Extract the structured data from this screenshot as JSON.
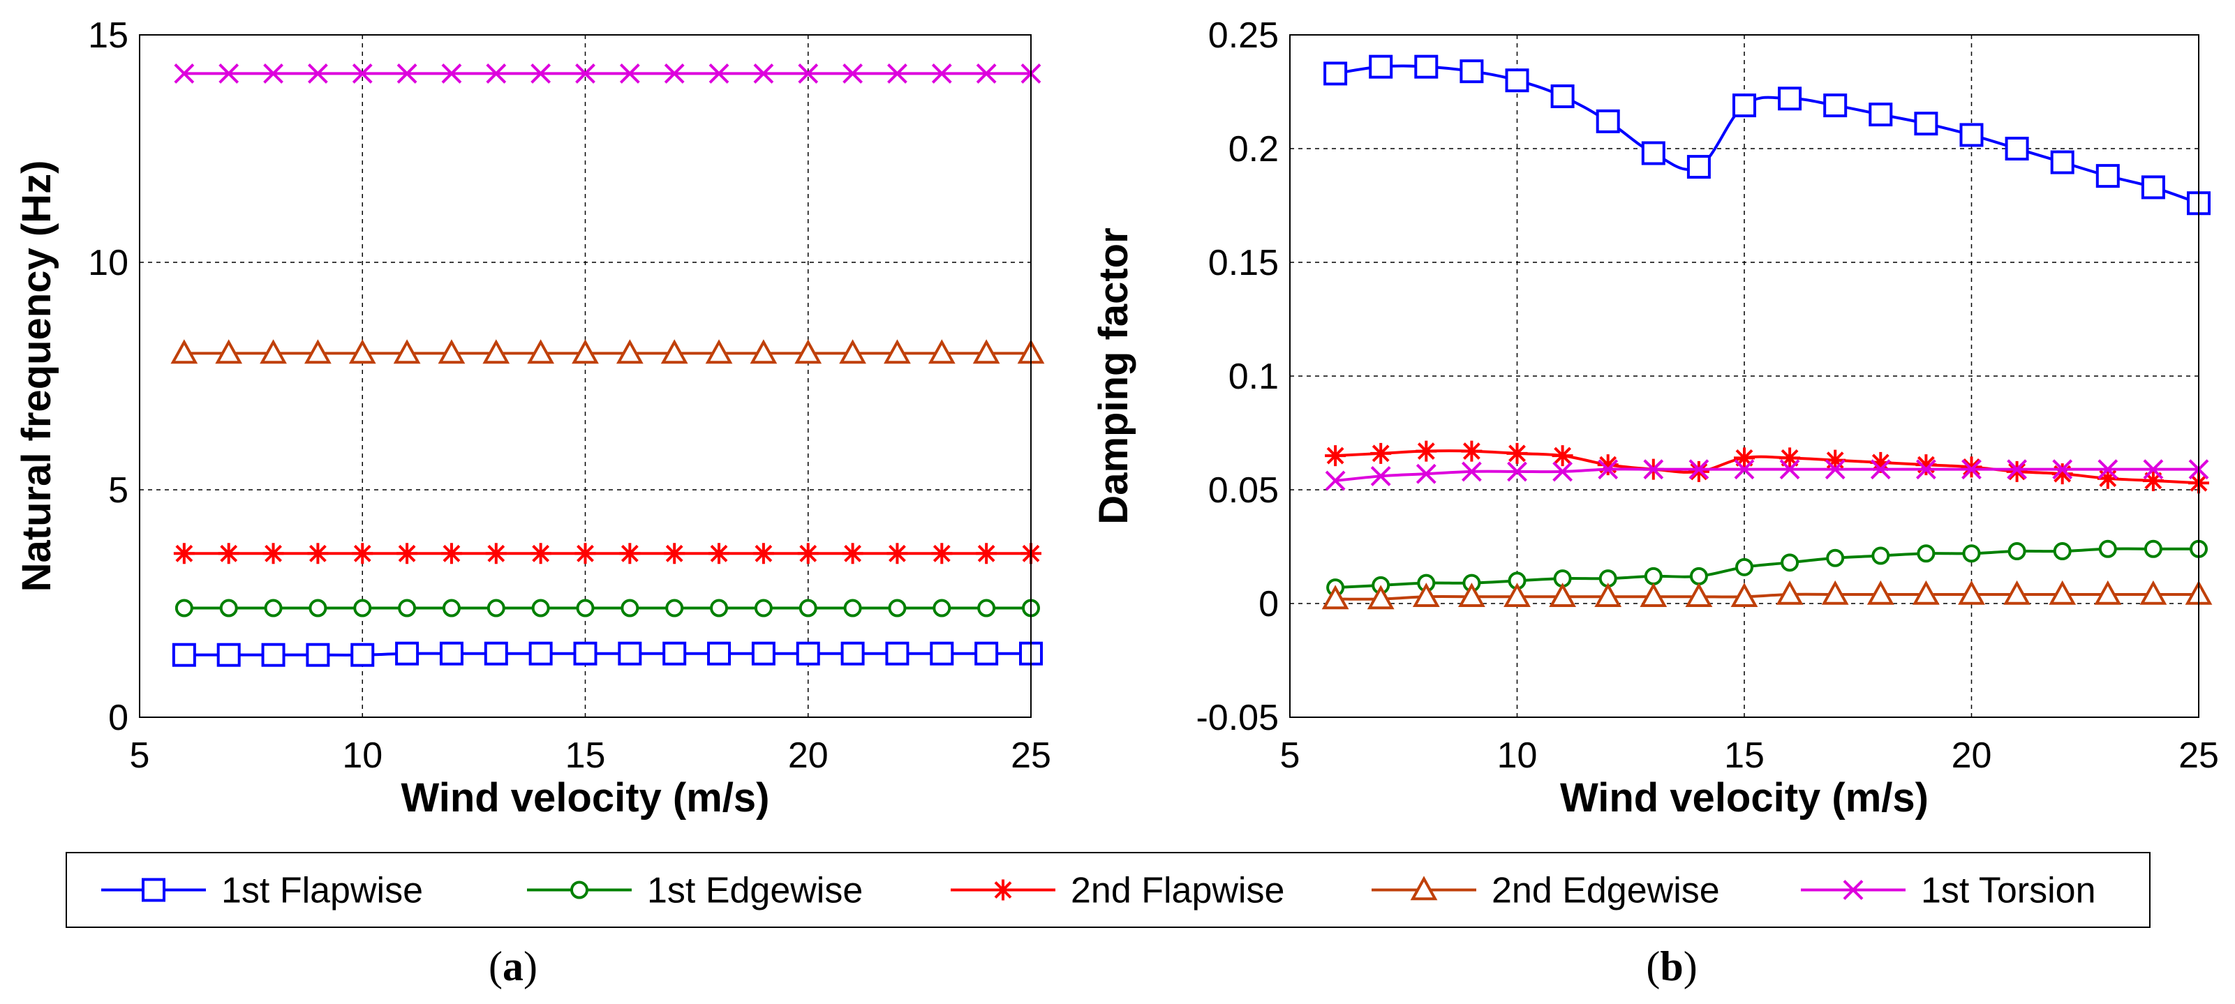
{
  "chart_data": [
    {
      "id": "a",
      "type": "line",
      "caption_letter": "a",
      "caption": "(a)",
      "xlabel": "Wind velocity (m/s)",
      "ylabel": "Natural frequency (Hz)",
      "xlim": [
        5,
        25
      ],
      "ylim": [
        0,
        15
      ],
      "xticks": [
        5,
        10,
        15,
        20,
        25
      ],
      "yticks": [
        0,
        5,
        10,
        15
      ],
      "xtick_labels": [
        "5",
        "10",
        "15",
        "20",
        "25"
      ],
      "ytick_labels": [
        "0",
        "5",
        "10",
        "15"
      ],
      "grid": true,
      "x": [
        6,
        7,
        8,
        9,
        10,
        11,
        12,
        13,
        14,
        15,
        16,
        17,
        18,
        19,
        20,
        21,
        22,
        23,
        24,
        25
      ],
      "series": [
        {
          "name": "1st Flapwise",
          "color": "#0000FF",
          "marker": "square",
          "values": [
            1.37,
            1.37,
            1.37,
            1.37,
            1.37,
            1.4,
            1.4,
            1.4,
            1.4,
            1.4,
            1.4,
            1.4,
            1.4,
            1.4,
            1.4,
            1.4,
            1.4,
            1.4,
            1.4,
            1.4
          ]
        },
        {
          "name": "1st Edgewise",
          "color": "#008000",
          "marker": "circle",
          "values": [
            2.4,
            2.4,
            2.4,
            2.4,
            2.4,
            2.4,
            2.4,
            2.4,
            2.4,
            2.4,
            2.4,
            2.4,
            2.4,
            2.4,
            2.4,
            2.4,
            2.4,
            2.4,
            2.4,
            2.4
          ]
        },
        {
          "name": "2nd Flapwise",
          "color": "#FF0000",
          "marker": "star",
          "values": [
            3.6,
            3.6,
            3.6,
            3.6,
            3.6,
            3.6,
            3.6,
            3.6,
            3.6,
            3.6,
            3.6,
            3.6,
            3.6,
            3.6,
            3.6,
            3.6,
            3.6,
            3.6,
            3.6,
            3.6
          ]
        },
        {
          "name": "2nd Edgewise",
          "color": "#C0400A",
          "marker": "triangle",
          "values": [
            8.0,
            8.0,
            8.0,
            8.0,
            8.0,
            8.0,
            8.0,
            8.0,
            8.0,
            8.0,
            8.0,
            8.0,
            8.0,
            8.0,
            8.0,
            8.0,
            8.0,
            8.0,
            8.0,
            8.0
          ]
        },
        {
          "name": "1st Torsion",
          "color": "#DD00DD",
          "marker": "x",
          "values": [
            14.15,
            14.15,
            14.15,
            14.15,
            14.15,
            14.15,
            14.15,
            14.15,
            14.15,
            14.15,
            14.15,
            14.15,
            14.15,
            14.15,
            14.15,
            14.15,
            14.15,
            14.15,
            14.15,
            14.15
          ]
        }
      ]
    },
    {
      "id": "b",
      "type": "line",
      "caption_letter": "b",
      "caption": "(b)",
      "xlabel": "Wind velocity (m/s)",
      "ylabel": "Damping factor",
      "xlim": [
        5,
        25
      ],
      "ylim": [
        -0.05,
        0.25
      ],
      "xticks": [
        5,
        10,
        15,
        20,
        25
      ],
      "yticks": [
        -0.05,
        0,
        0.05,
        0.1,
        0.15,
        0.2,
        0.25
      ],
      "xtick_labels": [
        "5",
        "10",
        "15",
        "20",
        "25"
      ],
      "ytick_labels": [
        "-0.05",
        "0",
        "0.05",
        "0.1",
        "0.15",
        "0.2",
        "0.25"
      ],
      "grid": true,
      "x": [
        6,
        7,
        8,
        9,
        10,
        11,
        12,
        13,
        14,
        15,
        16,
        17,
        18,
        19,
        20,
        21,
        22,
        23,
        24,
        25
      ],
      "series": [
        {
          "name": "1st Flapwise",
          "color": "#0000FF",
          "marker": "square",
          "values": [
            0.233,
            0.236,
            0.236,
            0.234,
            0.23,
            0.223,
            0.212,
            0.198,
            0.192,
            0.219,
            0.222,
            0.219,
            0.215,
            0.211,
            0.206,
            0.2,
            0.194,
            0.188,
            0.183,
            0.176
          ]
        },
        {
          "name": "1st Edgewise",
          "color": "#008000",
          "marker": "circle",
          "values": [
            0.007,
            0.008,
            0.009,
            0.009,
            0.01,
            0.011,
            0.011,
            0.012,
            0.012,
            0.016,
            0.018,
            0.02,
            0.021,
            0.022,
            0.022,
            0.023,
            0.023,
            0.024,
            0.024,
            0.024
          ]
        },
        {
          "name": "2nd Flapwise",
          "color": "#FF0000",
          "marker": "star",
          "values": [
            0.065,
            0.066,
            0.067,
            0.067,
            0.066,
            0.065,
            0.061,
            0.059,
            0.058,
            0.064,
            0.064,
            0.063,
            0.062,
            0.061,
            0.06,
            0.058,
            0.057,
            0.055,
            0.054,
            0.053
          ]
        },
        {
          "name": "2nd Edgewise",
          "color": "#C0400A",
          "marker": "triangle",
          "values": [
            0.002,
            0.002,
            0.003,
            0.003,
            0.003,
            0.003,
            0.003,
            0.003,
            0.003,
            0.003,
            0.004,
            0.004,
            0.004,
            0.004,
            0.004,
            0.004,
            0.004,
            0.004,
            0.004,
            0.004
          ]
        },
        {
          "name": "1st Torsion",
          "color": "#DD00DD",
          "marker": "x",
          "values": [
            0.054,
            0.056,
            0.057,
            0.058,
            0.058,
            0.058,
            0.059,
            0.059,
            0.059,
            0.059,
            0.059,
            0.059,
            0.059,
            0.059,
            0.059,
            0.059,
            0.059,
            0.059,
            0.059,
            0.059
          ]
        }
      ]
    }
  ],
  "legend": {
    "placement": "bottom",
    "entries": [
      {
        "name": "1st Flapwise",
        "color": "#0000FF",
        "marker": "square"
      },
      {
        "name": "1st Edgewise",
        "color": "#008000",
        "marker": "circle"
      },
      {
        "name": "2nd Flapwise",
        "color": "#FF0000",
        "marker": "star"
      },
      {
        "name": "2nd Edgewise",
        "color": "#C0400A",
        "marker": "triangle"
      },
      {
        "name": "1st Torsion",
        "color": "#DD00DD",
        "marker": "x"
      }
    ]
  }
}
